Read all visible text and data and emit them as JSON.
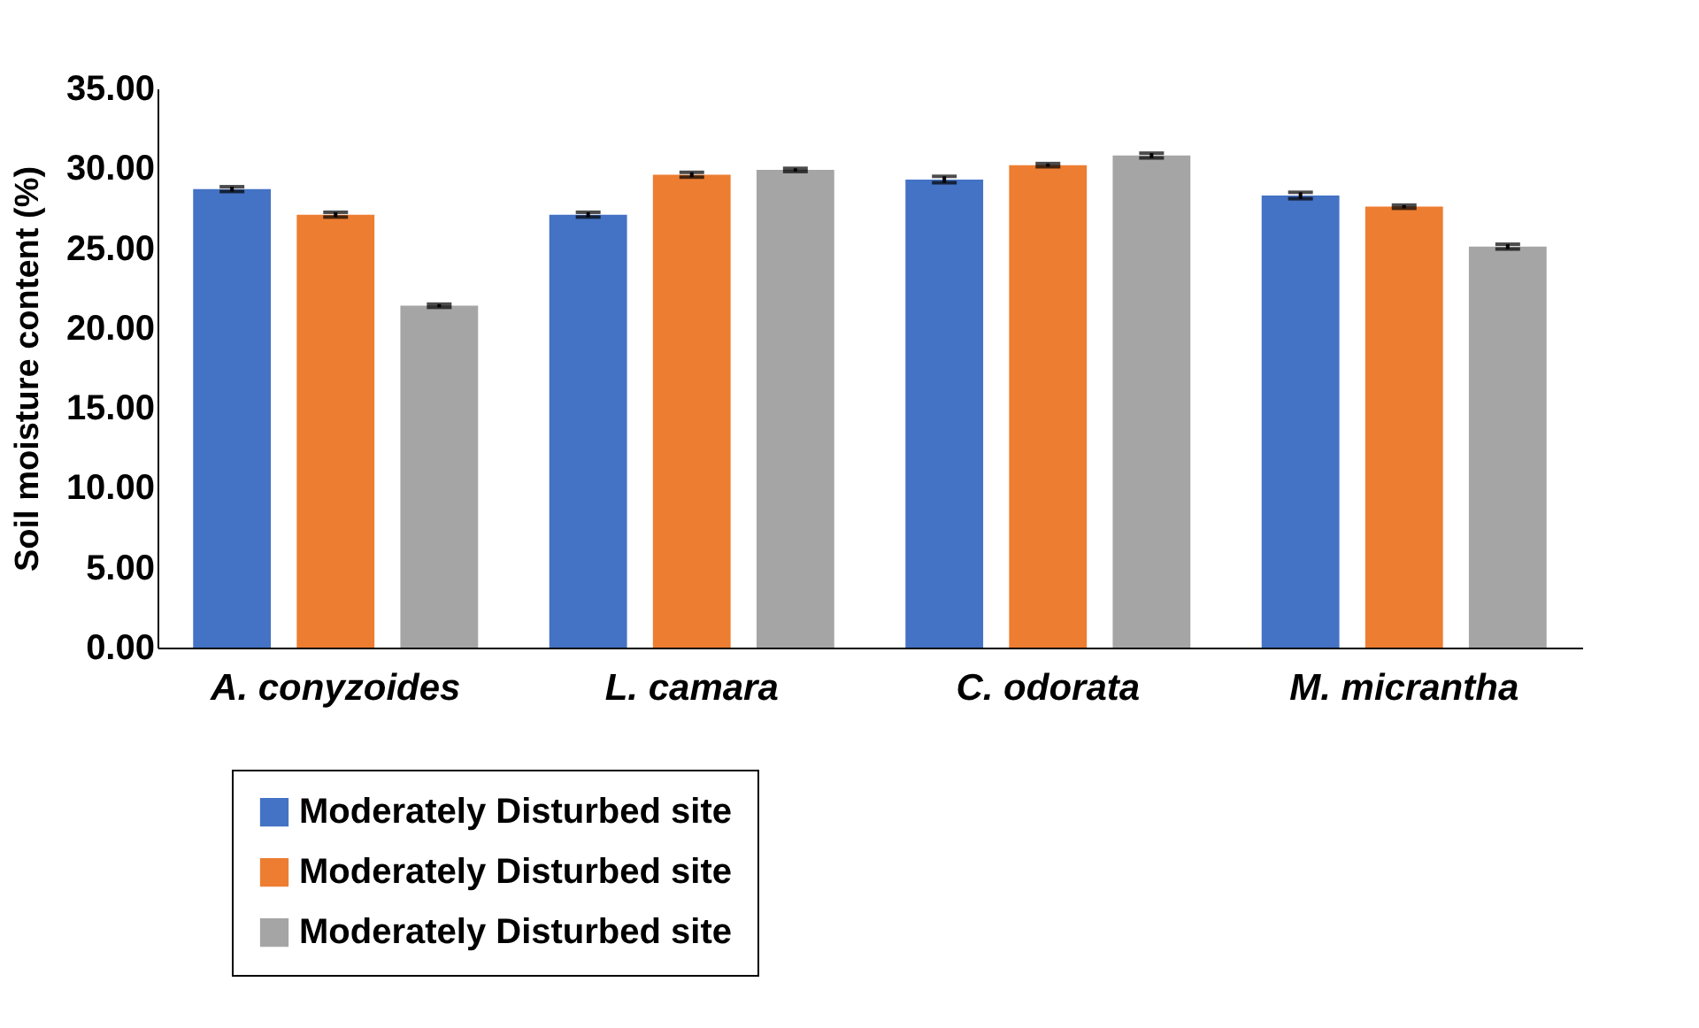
{
  "chart_data": {
    "type": "bar",
    "ylabel": "Soil moisture content (%)",
    "categories": [
      "A. conyzoides",
      "L. camara",
      "C. odorata",
      "M. micrantha"
    ],
    "series": [
      {
        "name": "Moderately Disturbed site",
        "color": "#4472c4",
        "values": [
          28.7,
          27.1,
          29.3,
          28.3
        ],
        "errors": [
          0.15,
          0.15,
          0.2,
          0.2
        ]
      },
      {
        "name": "Moderately Disturbed site",
        "color": "#ed7d31",
        "values": [
          27.1,
          29.6,
          30.2,
          27.6
        ],
        "errors": [
          0.15,
          0.15,
          0.1,
          0.1
        ]
      },
      {
        "name": "Moderately Disturbed site",
        "color": "#a5a5a5",
        "values": [
          21.4,
          29.9,
          30.8,
          25.1
        ],
        "errors": [
          0.1,
          0.1,
          0.15,
          0.15
        ]
      }
    ],
    "ylim": [
      0,
      35
    ],
    "yticks": [
      {
        "value": 0,
        "label": "0.00"
      },
      {
        "value": 5,
        "label": "5.00"
      },
      {
        "value": 10,
        "label": "10.00"
      },
      {
        "value": 15,
        "label": "15.00"
      },
      {
        "value": 20,
        "label": "20.00"
      },
      {
        "value": 25,
        "label": "25.00"
      },
      {
        "value": 30,
        "label": "30.00"
      },
      {
        "value": 35,
        "label": "35.00"
      }
    ],
    "grid": false,
    "legend": "bottom"
  }
}
